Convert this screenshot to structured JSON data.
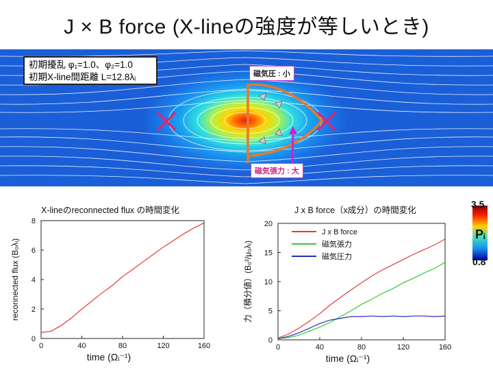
{
  "slide": {
    "title": "J × B  force  (X-lineの強度が等しいとき)"
  },
  "simulation": {
    "info_line1": "初期擾乱 φ₁=1.0、φ₂=1.0",
    "info_line2": "初期X-line間距離 L=12.8λᵢ",
    "pressure_label": "磁気圧 : 小",
    "tension_label": "磁気張力 : 大",
    "colorbar_max": "3.5",
    "colorbar_var": "Pᵢ",
    "colorbar_min": "0.8",
    "xline_color": "#e8206a",
    "arrow_color": "#e8782a"
  },
  "chart_data": [
    {
      "type": "line",
      "title": "X-lineのreconnected flux の時間変化",
      "xlabel": "time (Ωᵢ⁻¹)",
      "ylabel": "reconnected flux (B₀λᵢ)",
      "xlim": [
        0,
        160
      ],
      "ylim": [
        0,
        8
      ],
      "xticks": [
        "0",
        "40",
        "80",
        "120",
        "160"
      ],
      "yticks": [
        "0",
        "2",
        "4",
        "6",
        "8"
      ],
      "series": [
        {
          "name": "reconnected flux",
          "color": "#e03a3a",
          "x": [
            0,
            10,
            20,
            30,
            40,
            50,
            60,
            70,
            80,
            90,
            100,
            110,
            120,
            130,
            140,
            150,
            160
          ],
          "values": [
            0.4,
            0.5,
            0.9,
            1.4,
            2.0,
            2.55,
            3.1,
            3.6,
            4.2,
            4.7,
            5.2,
            5.7,
            6.2,
            6.65,
            7.1,
            7.5,
            7.85
          ]
        }
      ]
    },
    {
      "type": "line",
      "title": "J x B force（x成分）の時間変化",
      "xlabel": "time (Ωᵢ⁻¹)",
      "ylabel": "力（積分値）(B₀²/μ₀λᵢ)",
      "xlim": [
        0,
        160
      ],
      "ylim": [
        0,
        20
      ],
      "xticks": [
        "0",
        "40",
        "80",
        "120",
        "160"
      ],
      "yticks": [
        "0",
        "5",
        "10",
        "15",
        "20"
      ],
      "series": [
        {
          "name": "J x B force",
          "color": "#e03a3a",
          "x": [
            0,
            10,
            20,
            30,
            40,
            50,
            60,
            70,
            80,
            90,
            100,
            110,
            120,
            130,
            140,
            150,
            160
          ],
          "values": [
            0.3,
            1.0,
            2.0,
            3.2,
            4.5,
            6.0,
            7.3,
            8.6,
            9.8,
            11.0,
            12.0,
            12.9,
            13.8,
            14.7,
            15.5,
            16.3,
            17.3
          ]
        },
        {
          "name": "磁気張力",
          "color": "#2ecc2e",
          "x": [
            0,
            10,
            20,
            30,
            40,
            50,
            60,
            70,
            80,
            90,
            100,
            110,
            120,
            130,
            140,
            150,
            160
          ],
          "values": [
            0.2,
            0.4,
            0.8,
            1.5,
            2.2,
            3.0,
            4.0,
            5.0,
            6.1,
            7.0,
            8.0,
            8.8,
            9.8,
            10.6,
            11.5,
            12.3,
            13.3
          ]
        },
        {
          "name": "磁気圧力",
          "color": "#2a2ab8",
          "x": [
            0,
            10,
            20,
            30,
            40,
            50,
            60,
            70,
            80,
            90,
            100,
            110,
            120,
            130,
            140,
            150,
            160
          ],
          "values": [
            0.2,
            0.6,
            1.2,
            2.0,
            2.8,
            3.4,
            3.7,
            4.0,
            4.0,
            4.1,
            4.0,
            4.1,
            4.0,
            4.1,
            4.1,
            4.0,
            4.1
          ]
        }
      ]
    }
  ]
}
